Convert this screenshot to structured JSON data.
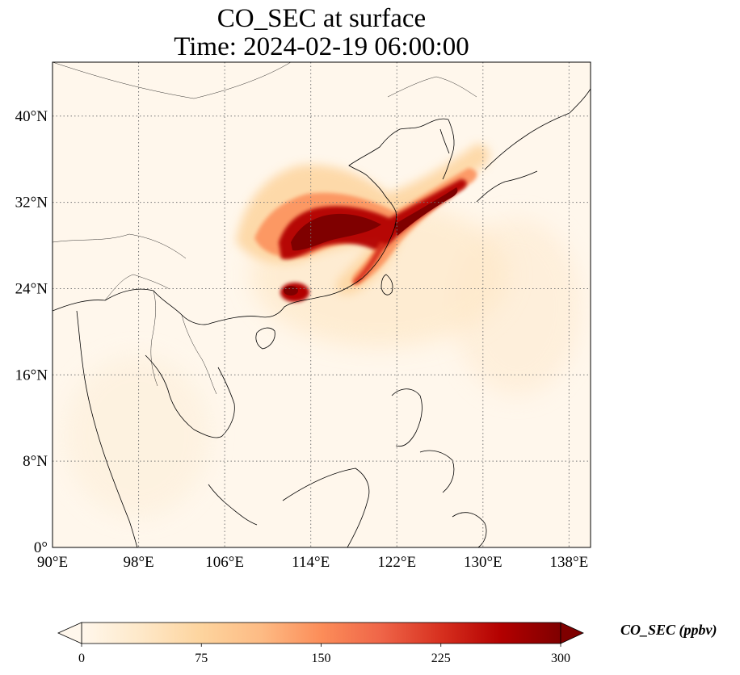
{
  "title": {
    "line1": "CO_SEC at surface",
    "line2": "Time: 2024-02-19 06:00:00"
  },
  "map": {
    "projection": "PlateCarree",
    "lon_range": [
      90,
      140
    ],
    "lat_range": [
      0,
      45
    ],
    "x_ticks": [
      {
        "value": 90,
        "label": "90°E"
      },
      {
        "value": 98,
        "label": "98°E"
      },
      {
        "value": 106,
        "label": "106°E"
      },
      {
        "value": 114,
        "label": "114°E"
      },
      {
        "value": 122,
        "label": "122°E"
      },
      {
        "value": 130,
        "label": "130°E"
      },
      {
        "value": 138,
        "label": "138°E"
      }
    ],
    "y_ticks": [
      {
        "value": 0,
        "label": "0°"
      },
      {
        "value": 8,
        "label": "8°N"
      },
      {
        "value": 16,
        "label": "16°N"
      },
      {
        "value": 24,
        "label": "24°N"
      },
      {
        "value": 32,
        "label": "32°N"
      },
      {
        "value": 40,
        "label": "40°N"
      }
    ],
    "gridlines": "dotted",
    "coastlines": true,
    "borders": true,
    "colormap": "OrRd",
    "colors": {
      "background": "#fff7ec",
      "low": "#fee8c8",
      "mid": "#fdbb84",
      "high": "#ef6548",
      "max": "#7f0000",
      "grid": "#777777",
      "coast": "#000000"
    }
  },
  "colorbar": {
    "label": "CO_SEC (ppbv)",
    "vmin": 0,
    "vmax": 300,
    "extend": "both",
    "ticks": [
      {
        "value": 0,
        "label": "0"
      },
      {
        "value": 75,
        "label": "75"
      },
      {
        "value": 150,
        "label": "150"
      },
      {
        "value": 225,
        "label": "225"
      },
      {
        "value": 300,
        "label": "300"
      }
    ],
    "stops": [
      "#fff7ec",
      "#fee8c8",
      "#fdd49e",
      "#fdbb84",
      "#fc8d59",
      "#ef6548",
      "#d7301f",
      "#b30000",
      "#7f0000"
    ]
  }
}
